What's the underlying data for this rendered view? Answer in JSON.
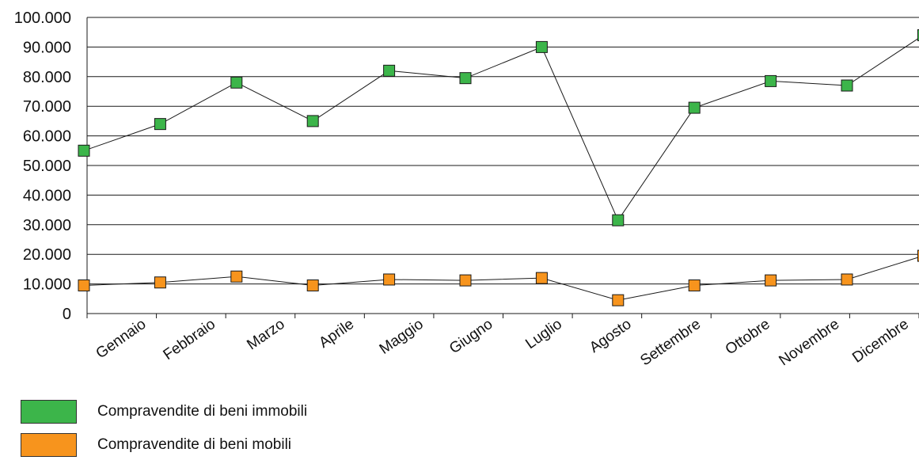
{
  "chart_data": {
    "type": "line",
    "categories": [
      "Gennaio",
      "Febbraio",
      "Marzo",
      "Aprile",
      "Maggio",
      "Giugno",
      "Luglio",
      "Agosto",
      "Settembre",
      "Ottobre",
      "Novembre",
      "Dicembre"
    ],
    "series": [
      {
        "name": "Compravendite di beni immobili",
        "color": "#3cb54a",
        "values": [
          55000,
          64000,
          78000,
          65000,
          82000,
          79500,
          90000,
          31500,
          69500,
          78500,
          77000,
          94000
        ]
      },
      {
        "name": "Compravendite di beni mobili",
        "color": "#f7941d",
        "values": [
          9500,
          10500,
          12500,
          9500,
          11500,
          11200,
          12000,
          4500,
          9500,
          11200,
          11500,
          19500
        ]
      }
    ],
    "y_ticks": [
      "0",
      "10.000",
      "20.000",
      "30.000",
      "40.000",
      "50.000",
      "60.000",
      "70.000",
      "80.000",
      "90.000",
      "100.000"
    ],
    "ylim": [
      0,
      100000
    ],
    "grid": true,
    "legend_position": "bottom-left"
  }
}
